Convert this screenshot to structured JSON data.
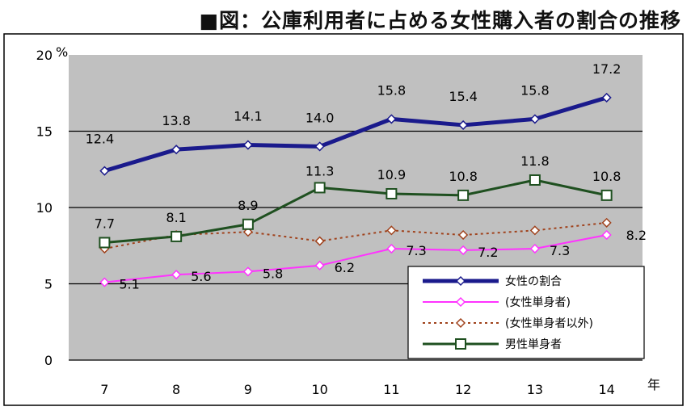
{
  "chart_data": {
    "type": "line",
    "title": "■図：公庫利用者に占める女性購入者の割合の推移",
    "xlabel": "年",
    "ylabel": "%",
    "categories": [
      "7",
      "8",
      "9",
      "10",
      "11",
      "12",
      "13",
      "14"
    ],
    "ylim": [
      0,
      20
    ],
    "yticks": [
      0,
      5,
      10,
      15,
      20
    ],
    "grid": true,
    "legend_position": "bottom-right",
    "series": [
      {
        "name": "女性の割合",
        "values": [
          12.4,
          13.8,
          14.1,
          14.0,
          15.8,
          15.4,
          15.8,
          17.2
        ],
        "labels": [
          "12.4",
          "13.8",
          "14.1",
          "14.0",
          "15.8",
          "15.4",
          "15.8",
          "17.2"
        ],
        "color": "#1a1a8c",
        "marker": "diamond",
        "line": "solid",
        "width": 5
      },
      {
        "name": "(女性単身者)",
        "values": [
          5.1,
          5.6,
          5.8,
          6.2,
          7.3,
          7.2,
          7.3,
          8.2
        ],
        "labels": [
          "5.1",
          "5.6",
          "5.8",
          "6.2",
          "7.3",
          "7.2",
          "7.3",
          "8.2"
        ],
        "color": "#ff33ff",
        "marker": "diamond",
        "line": "solid",
        "width": 2
      },
      {
        "name": "(女性単身者以外)",
        "values": [
          7.3,
          8.2,
          8.4,
          7.8,
          8.5,
          8.2,
          8.5,
          9.0
        ],
        "labels": [],
        "color": "#a0421c",
        "marker": "diamond",
        "line": "dotted",
        "width": 2
      },
      {
        "name": "男性単身者",
        "values": [
          7.7,
          8.1,
          8.9,
          11.3,
          10.9,
          10.8,
          11.8,
          10.8
        ],
        "labels": [
          "7.7",
          "8.1",
          "8.9",
          "11.3",
          "10.9",
          "10.8",
          "11.8",
          "10.8"
        ],
        "color": "#1f5020",
        "marker": "square",
        "line": "solid",
        "width": 3
      }
    ]
  },
  "colors": {
    "plot_bg": "#c0c0c0",
    "gridline": "#000000",
    "legend_bg": "#ffffff"
  }
}
